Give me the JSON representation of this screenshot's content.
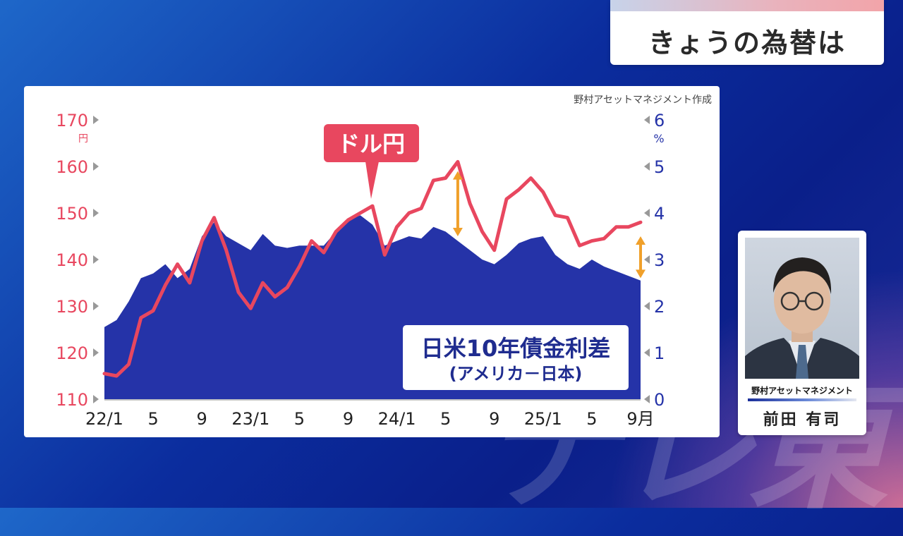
{
  "watermark": "テレ東",
  "header": {
    "title": "きょうの為替は"
  },
  "speaker": {
    "organization": "野村アセットマネジメント",
    "name": "前田 有司"
  },
  "colors": {
    "usdjpy": "#e8475f",
    "spread": "#2533a8",
    "arrow": "#f0a02a",
    "brand": "#1b2f9a"
  },
  "chart_data": {
    "type": "line",
    "source": "野村アセットマネジメント作成",
    "x_ticks": [
      "22/1",
      "5",
      "9",
      "23/1",
      "5",
      "9",
      "24/1",
      "5",
      "9",
      "25/1",
      "5",
      "9月"
    ],
    "y_left": {
      "ticks": [
        110,
        120,
        130,
        140,
        150,
        160,
        170
      ],
      "unit": "円",
      "range": [
        110,
        170
      ]
    },
    "y_right": {
      "ticks": [
        0,
        1,
        2,
        3,
        4,
        5,
        6
      ],
      "unit": "%",
      "range": [
        0,
        6
      ]
    },
    "series": [
      {
        "name": "ドル円",
        "axis": "left",
        "type": "line",
        "values": [
          [
            "2022-01",
            115.5
          ],
          [
            "2022-02",
            115.0
          ],
          [
            "2022-03",
            117.5
          ],
          [
            "2022-04",
            127.5
          ],
          [
            "2022-05",
            129.0
          ],
          [
            "2022-06",
            134.5
          ],
          [
            "2022-07",
            139.0
          ],
          [
            "2022-08",
            135.0
          ],
          [
            "2022-09",
            144.0
          ],
          [
            "2022-10",
            149.0
          ],
          [
            "2022-11",
            142.0
          ],
          [
            "2022-12",
            133.0
          ],
          [
            "2023-01",
            129.5
          ],
          [
            "2023-02",
            135.0
          ],
          [
            "2023-03",
            132.0
          ],
          [
            "2023-04",
            134.0
          ],
          [
            "2023-05",
            138.5
          ],
          [
            "2023-06",
            144.0
          ],
          [
            "2023-07",
            141.5
          ],
          [
            "2023-08",
            146.0
          ],
          [
            "2023-09",
            148.5
          ],
          [
            "2023-10",
            150.0
          ],
          [
            "2023-11",
            151.5
          ],
          [
            "2023-12",
            141.0
          ],
          [
            "2024-01",
            147.0
          ],
          [
            "2024-02",
            150.0
          ],
          [
            "2024-03",
            151.0
          ],
          [
            "2024-04",
            157.0
          ],
          [
            "2024-05",
            157.5
          ],
          [
            "2024-06",
            161.0
          ],
          [
            "2024-07",
            152.0
          ],
          [
            "2024-08",
            146.0
          ],
          [
            "2024-09",
            142.0
          ],
          [
            "2024-10",
            153.0
          ],
          [
            "2024-11",
            155.0
          ],
          [
            "2024-12",
            157.5
          ],
          [
            "2025-01",
            154.5
          ],
          [
            "2025-02",
            149.5
          ],
          [
            "2025-03",
            149.0
          ],
          [
            "2025-04",
            143.0
          ],
          [
            "2025-05",
            144.0
          ],
          [
            "2025-06",
            144.5
          ],
          [
            "2025-07",
            147.0
          ],
          [
            "2025-08",
            147.0
          ],
          [
            "2025-09",
            148.0
          ]
        ]
      },
      {
        "name": "日米10年債金利差（アメリカ－日本）",
        "axis": "right",
        "type": "area",
        "values": [
          [
            "2022-01",
            1.55
          ],
          [
            "2022-02",
            1.7
          ],
          [
            "2022-03",
            2.1
          ],
          [
            "2022-04",
            2.6
          ],
          [
            "2022-05",
            2.7
          ],
          [
            "2022-06",
            2.9
          ],
          [
            "2022-07",
            2.6
          ],
          [
            "2022-08",
            2.8
          ],
          [
            "2022-09",
            3.5
          ],
          [
            "2022-10",
            3.8
          ],
          [
            "2022-11",
            3.5
          ],
          [
            "2022-12",
            3.35
          ],
          [
            "2023-01",
            3.2
          ],
          [
            "2023-02",
            3.55
          ],
          [
            "2023-03",
            3.3
          ],
          [
            "2023-04",
            3.25
          ],
          [
            "2023-05",
            3.3
          ],
          [
            "2023-06",
            3.3
          ],
          [
            "2023-07",
            3.3
          ],
          [
            "2023-08",
            3.6
          ],
          [
            "2023-09",
            3.85
          ],
          [
            "2023-10",
            3.95
          ],
          [
            "2023-11",
            3.75
          ],
          [
            "2023-12",
            3.3
          ],
          [
            "2024-01",
            3.4
          ],
          [
            "2024-02",
            3.5
          ],
          [
            "2024-03",
            3.45
          ],
          [
            "2024-04",
            3.7
          ],
          [
            "2024-05",
            3.6
          ],
          [
            "2024-06",
            3.4
          ],
          [
            "2024-07",
            3.2
          ],
          [
            "2024-08",
            3.0
          ],
          [
            "2024-09",
            2.9
          ],
          [
            "2024-10",
            3.1
          ],
          [
            "2024-11",
            3.35
          ],
          [
            "2024-12",
            3.45
          ],
          [
            "2025-01",
            3.5
          ],
          [
            "2025-02",
            3.1
          ],
          [
            "2025-03",
            2.9
          ],
          [
            "2025-04",
            2.8
          ],
          [
            "2025-05",
            3.0
          ],
          [
            "2025-06",
            2.85
          ],
          [
            "2025-07",
            2.75
          ],
          [
            "2025-08",
            2.65
          ],
          [
            "2025-09",
            2.55
          ]
        ]
      }
    ],
    "annotations": {
      "usdjpy_label": "ドル円",
      "spread_label_line1": "日米10年債金利差",
      "spread_label_line2": "(アメリカ－日本)",
      "gap_arrows": [
        {
          "date": "2024-06",
          "from_left_value": 159,
          "to_right_value": 3.5
        },
        {
          "date": "2025-09",
          "from_left_value": 145,
          "to_right_value": 2.6
        }
      ]
    }
  }
}
